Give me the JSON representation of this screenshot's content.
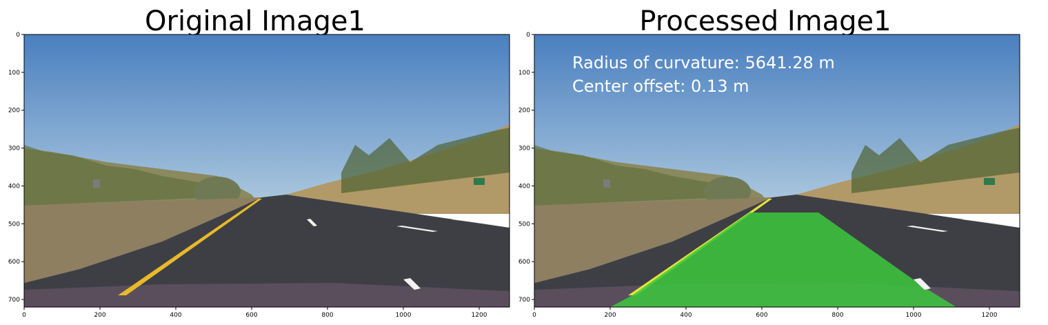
{
  "panels": [
    {
      "title": "Original Image1",
      "overlay_lines": []
    },
    {
      "title": "Processed Image1",
      "overlay_lines": [
        "Radius of curvature: 5641.28 m",
        "Center offset: 0.13 m"
      ]
    }
  ],
  "axes": {
    "x_range": [
      0,
      1280
    ],
    "y_range": [
      0,
      720
    ],
    "x_ticks": [
      0,
      200,
      400,
      600,
      800,
      1000,
      1200
    ],
    "y_ticks": [
      0,
      100,
      200,
      300,
      400,
      500,
      600,
      700
    ]
  },
  "colors": {
    "sky_top": "#4a7fbf",
    "sky_bottom": "#a9c6de",
    "road": "#3e3f45",
    "yellow_line": "#e8b92a",
    "lane_fill": "#3cc83c"
  }
}
